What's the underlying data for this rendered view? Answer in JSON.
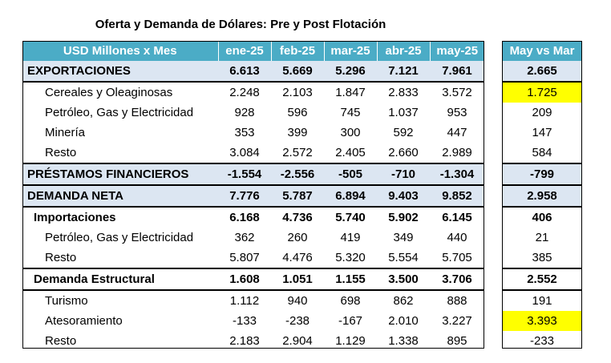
{
  "title": "Oferta y Demanda de Dólares: Pre y Post Flotación",
  "header": {
    "label": "USD Millones x Mes",
    "months": [
      "ene-25",
      "feb-25",
      "mar-25",
      "abr-25",
      "may-25"
    ],
    "diff_label": "May vs Mar"
  },
  "rows": [
    {
      "label": "EXPORTACIONES",
      "values": [
        "6.613",
        "5.669",
        "5.296",
        "7.121",
        "7.961"
      ],
      "diff": "2.665"
    },
    {
      "label": "Cereales y Oleaginosas",
      "values": [
        "2.248",
        "2.103",
        "1.847",
        "2.833",
        "3.572"
      ],
      "diff": "1.725"
    },
    {
      "label": "Petróleo, Gas y Electricidad",
      "values": [
        "928",
        "596",
        "745",
        "1.037",
        "953"
      ],
      "diff": "209"
    },
    {
      "label": "Minería",
      "values": [
        "353",
        "399",
        "300",
        "592",
        "447"
      ],
      "diff": "147"
    },
    {
      "label": "Resto",
      "values": [
        "3.084",
        "2.572",
        "2.405",
        "2.660",
        "2.989"
      ],
      "diff": "584"
    },
    {
      "label": "PRÉSTAMOS FINANCIEROS",
      "values": [
        "-1.554",
        "-2.556",
        "-505",
        "-710",
        "-1.304"
      ],
      "diff": "-799"
    },
    {
      "label": "DEMANDA NETA",
      "values": [
        "7.776",
        "5.787",
        "6.894",
        "9.403",
        "9.852"
      ],
      "diff": "2.958"
    },
    {
      "label": "Importaciones",
      "values": [
        "6.168",
        "4.736",
        "5.740",
        "5.902",
        "6.145"
      ],
      "diff": "406"
    },
    {
      "label": "Petróleo, Gas y Electricidad",
      "values": [
        "362",
        "260",
        "419",
        "349",
        "440"
      ],
      "diff": "21"
    },
    {
      "label": "Resto",
      "values": [
        "5.807",
        "4.476",
        "5.320",
        "5.554",
        "5.705"
      ],
      "diff": "385"
    },
    {
      "label": "Demanda Estructural",
      "values": [
        "1.608",
        "1.051",
        "1.155",
        "3.500",
        "3.706"
      ],
      "diff": "2.552"
    },
    {
      "label": "Turismo",
      "values": [
        "1.112",
        "940",
        "698",
        "862",
        "888"
      ],
      "diff": "191"
    },
    {
      "label": "Atesoramiento",
      "values": [
        "-133",
        "-238",
        "-167",
        "2.010",
        "3.227"
      ],
      "diff": "3.393"
    },
    {
      "label": "Resto",
      "values": [
        "2.183",
        "2.904",
        "1.129",
        "1.338",
        "895"
      ],
      "diff": "-233"
    }
  ],
  "highlight_color": "#ffff00",
  "header_color": "#4bacc6",
  "shade_color": "#dce6f2"
}
